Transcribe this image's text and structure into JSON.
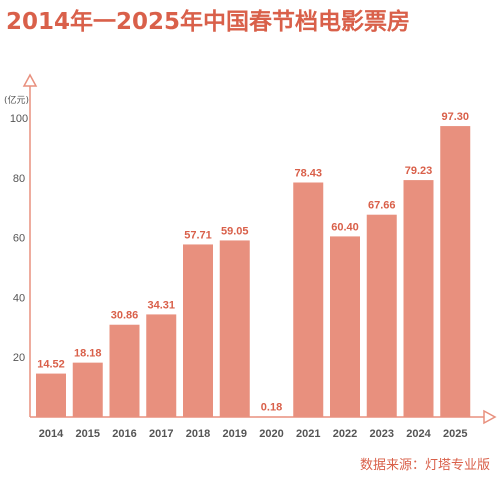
{
  "title": "2014年一2025年中国春节档电影票房",
  "source": "数据来源：灯塔专业版",
  "colors": {
    "accent": "#d9604a",
    "bar": "#e8907e",
    "axis": "#e8907e",
    "label": "#d9604a",
    "tick": "#555555"
  },
  "chart_data": {
    "type": "bar",
    "title": "2014年一2025年中国春节档电影票房",
    "ylabel": "(亿元)",
    "categories": [
      "2014",
      "2015",
      "2016",
      "2017",
      "2018",
      "2019",
      "2020",
      "2021",
      "2022",
      "2023",
      "2024",
      "2025"
    ],
    "values": [
      14.52,
      18.18,
      30.86,
      34.31,
      57.71,
      59.05,
      0.18,
      78.43,
      60.4,
      67.66,
      79.23,
      97.3
    ],
    "value_labels": [
      "14.52",
      "18.18",
      "30.86",
      "34.31",
      "57.71",
      "59.05",
      "0.18",
      "78.43",
      "60.40",
      "67.66",
      "79.23",
      "97.30"
    ],
    "yticks": [
      "20",
      "40",
      "60",
      "80",
      "100"
    ],
    "ylim": [
      0,
      100
    ],
    "grid": false,
    "legend": "none"
  }
}
